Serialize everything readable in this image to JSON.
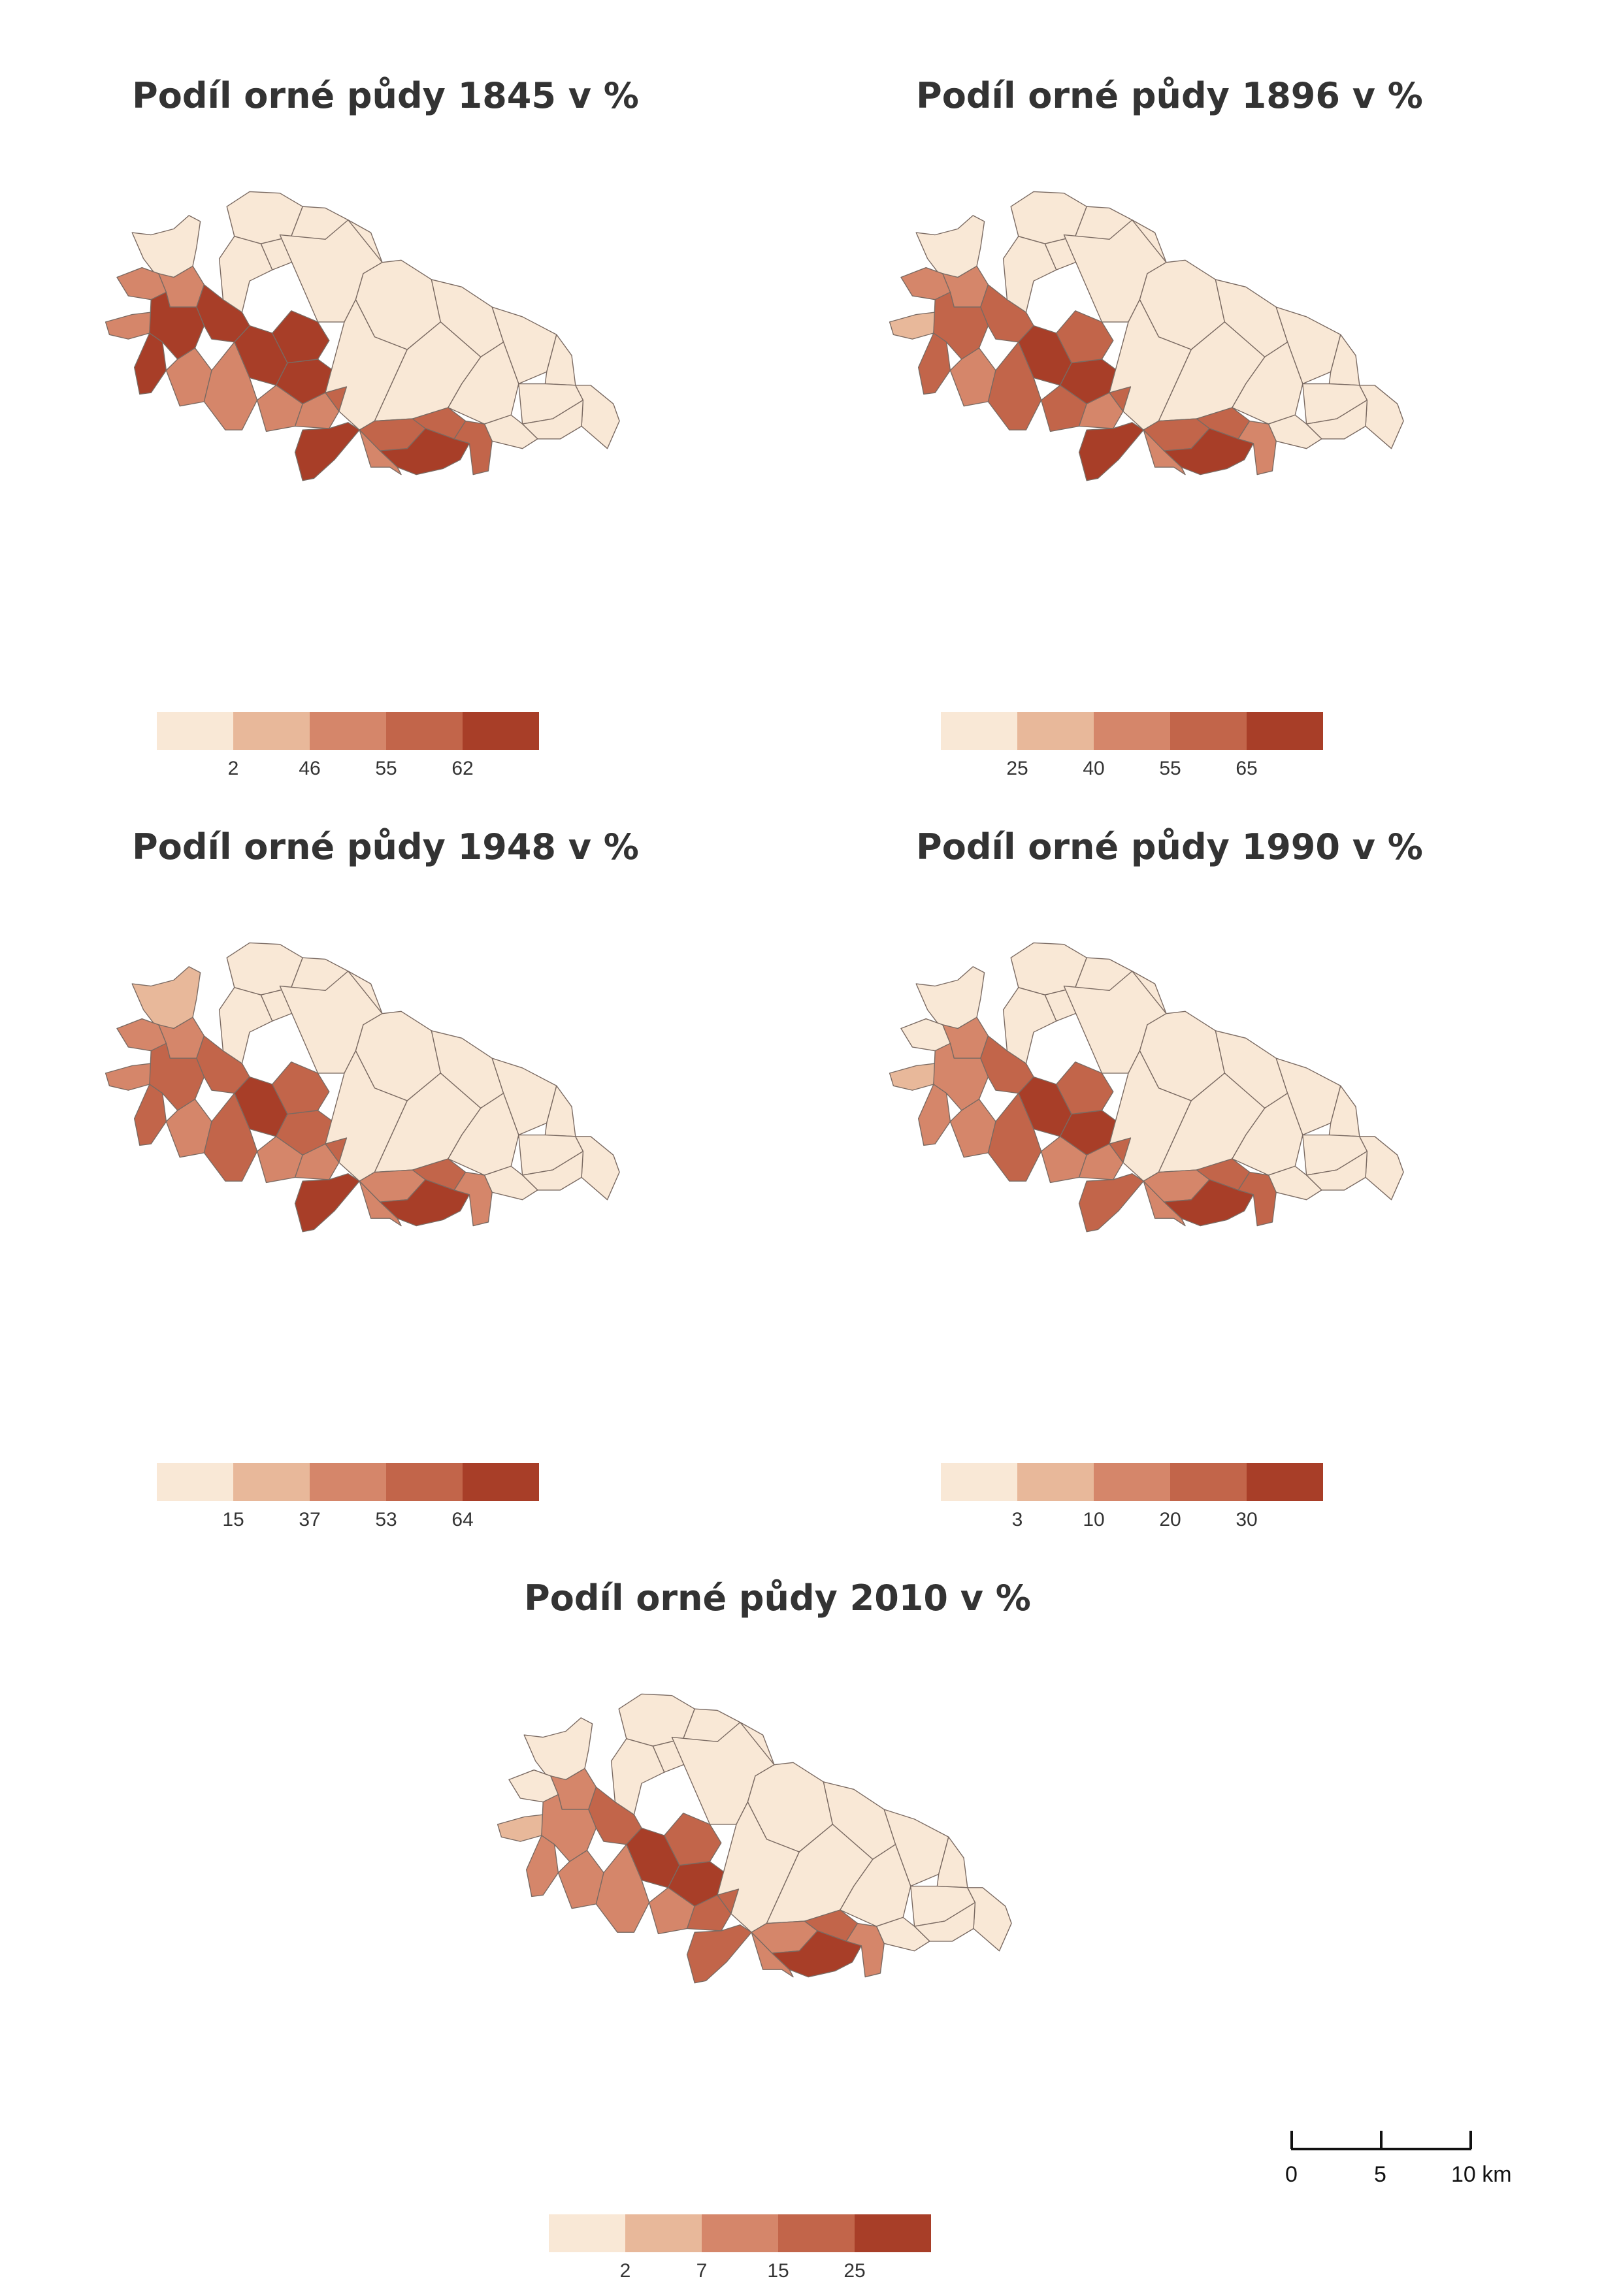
{
  "colors": {
    "class1": "#f9e8d6",
    "class2": "#e8b89a",
    "class3": "#d5866a",
    "class4": "#c2654a",
    "class5": "#a83e28",
    "border": "#7a6a62"
  },
  "maps": [
    {
      "title": "Podíl orné půdy 1845 v %",
      "legend": [
        "2",
        "46",
        "55",
        "62"
      ],
      "classes": [
        1,
        1,
        1,
        1,
        3,
        3,
        3,
        5,
        5,
        5,
        3,
        1,
        1,
        5,
        5,
        5,
        3,
        3,
        3,
        4,
        5,
        1,
        1,
        1,
        1,
        1,
        1,
        1,
        1,
        1,
        1,
        4,
        4,
        5,
        4,
        3,
        1,
        1
      ]
    },
    {
      "title": "Podíl orné půdy 1896 v %",
      "legend": [
        "25",
        "40",
        "55",
        "65"
      ],
      "classes": [
        1,
        1,
        1,
        1,
        3,
        3,
        2,
        4,
        4,
        4,
        3,
        1,
        1,
        5,
        5,
        4,
        4,
        4,
        3,
        4,
        5,
        1,
        1,
        1,
        1,
        1,
        1,
        1,
        1,
        1,
        1,
        4,
        4,
        5,
        3,
        3,
        1,
        1
      ]
    },
    {
      "title": "Podíl orné půdy 1948 v %",
      "legend": [
        "15",
        "37",
        "53",
        "64"
      ],
      "classes": [
        2,
        1,
        1,
        1,
        3,
        3,
        3,
        4,
        4,
        4,
        3,
        1,
        1,
        5,
        4,
        4,
        4,
        3,
        3,
        4,
        5,
        1,
        1,
        1,
        1,
        1,
        1,
        1,
        1,
        1,
        1,
        3,
        4,
        5,
        3,
        3,
        1,
        1
      ]
    },
    {
      "title": "Podíl orné půdy 1990 v %",
      "legend": [
        "3",
        "10",
        "20",
        "30"
      ],
      "classes": [
        1,
        1,
        1,
        1,
        1,
        3,
        2,
        4,
        3,
        3,
        3,
        1,
        1,
        5,
        5,
        4,
        4,
        3,
        3,
        4,
        4,
        1,
        1,
        1,
        1,
        1,
        1,
        1,
        1,
        1,
        1,
        3,
        4,
        5,
        4,
        3,
        1,
        1
      ]
    },
    {
      "title": "Podíl orné půdy 2010 v %",
      "legend": [
        "2",
        "7",
        "15",
        "25"
      ],
      "classes": [
        1,
        1,
        1,
        1,
        1,
        3,
        2,
        4,
        3,
        3,
        3,
        1,
        1,
        5,
        5,
        4,
        3,
        3,
        4,
        4,
        4,
        1,
        1,
        1,
        1,
        1,
        1,
        1,
        1,
        1,
        1,
        3,
        4,
        5,
        3,
        3,
        1,
        1
      ]
    }
  ],
  "scalebar": {
    "ticks": [
      "0",
      "5",
      "10 km"
    ]
  }
}
